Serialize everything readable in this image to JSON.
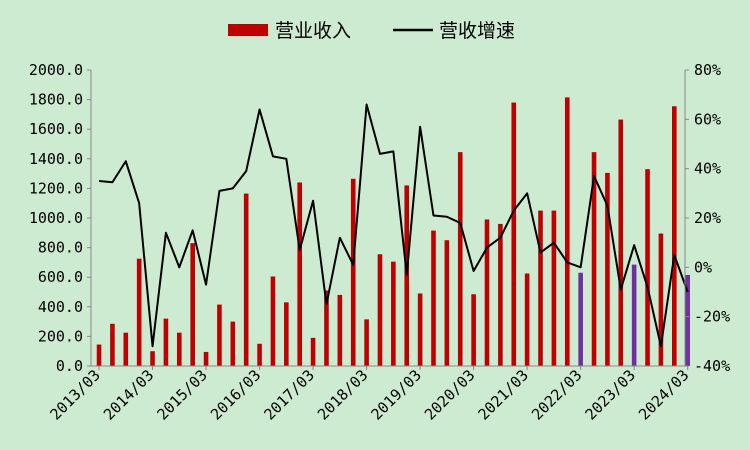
{
  "chart_data": {
    "type": "bar",
    "legend": {
      "placement": "top-center",
      "items": [
        {
          "label": "营业收入",
          "kind": "bar",
          "color": "#c00000"
        },
        {
          "label": "营收增速",
          "kind": "line",
          "color": "#000000"
        }
      ]
    },
    "x_tick_labels": [
      "2013/03",
      "2014/03",
      "2015/03",
      "2016/03",
      "2017/03",
      "2018/03",
      "2019/03",
      "2020/03",
      "2021/03",
      "2022/03",
      "2023/03",
      "2024/03"
    ],
    "left_axis": {
      "ylim": [
        0,
        2000
      ],
      "ticks": [
        "0.0",
        "200.0",
        "400.0",
        "600.0",
        "800.0",
        "1000.0",
        "1200.0",
        "1400.0",
        "1600.0",
        "1800.0",
        "2000.0"
      ]
    },
    "right_axis": {
      "ylim": [
        -40,
        80
      ],
      "unit": "%",
      "ticks": [
        "-40%",
        "-20%",
        "0%",
        "20%",
        "40%",
        "60%",
        "80%"
      ]
    },
    "grid": false,
    "colors": {
      "bar": "#c00000",
      "bar_highlight": "#7030a0",
      "line": "#000000"
    },
    "series": [
      {
        "name": "营业收入",
        "axis": "left",
        "values": [
          145,
          285,
          225,
          725,
          100,
          320,
          225,
          830,
          95,
          415,
          300,
          1165,
          150,
          605,
          430,
          1240,
          190,
          510,
          480,
          1265,
          315,
          755,
          705,
          1220,
          490,
          915,
          850,
          1445,
          485,
          990,
          960,
          1780,
          625,
          1050,
          1050,
          1815,
          630,
          1445,
          1305,
          1665,
          685,
          1330,
          895,
          1755,
          615
        ],
        "highlight_indices": [
          36,
          40,
          44
        ]
      },
      {
        "name": "营收增速",
        "axis": "right",
        "values": [
          35,
          34.5,
          43,
          26,
          -32,
          14,
          0,
          15,
          -7,
          31,
          32,
          39,
          64,
          45,
          44,
          7,
          27,
          -15,
          12,
          1,
          66,
          46,
          47,
          -3,
          57,
          21,
          20.5,
          18,
          -1.5,
          8,
          12,
          23,
          30,
          6,
          10,
          2,
          0,
          37,
          25,
          -9,
          9,
          -8,
          -32,
          5,
          -10
        ]
      }
    ]
  }
}
